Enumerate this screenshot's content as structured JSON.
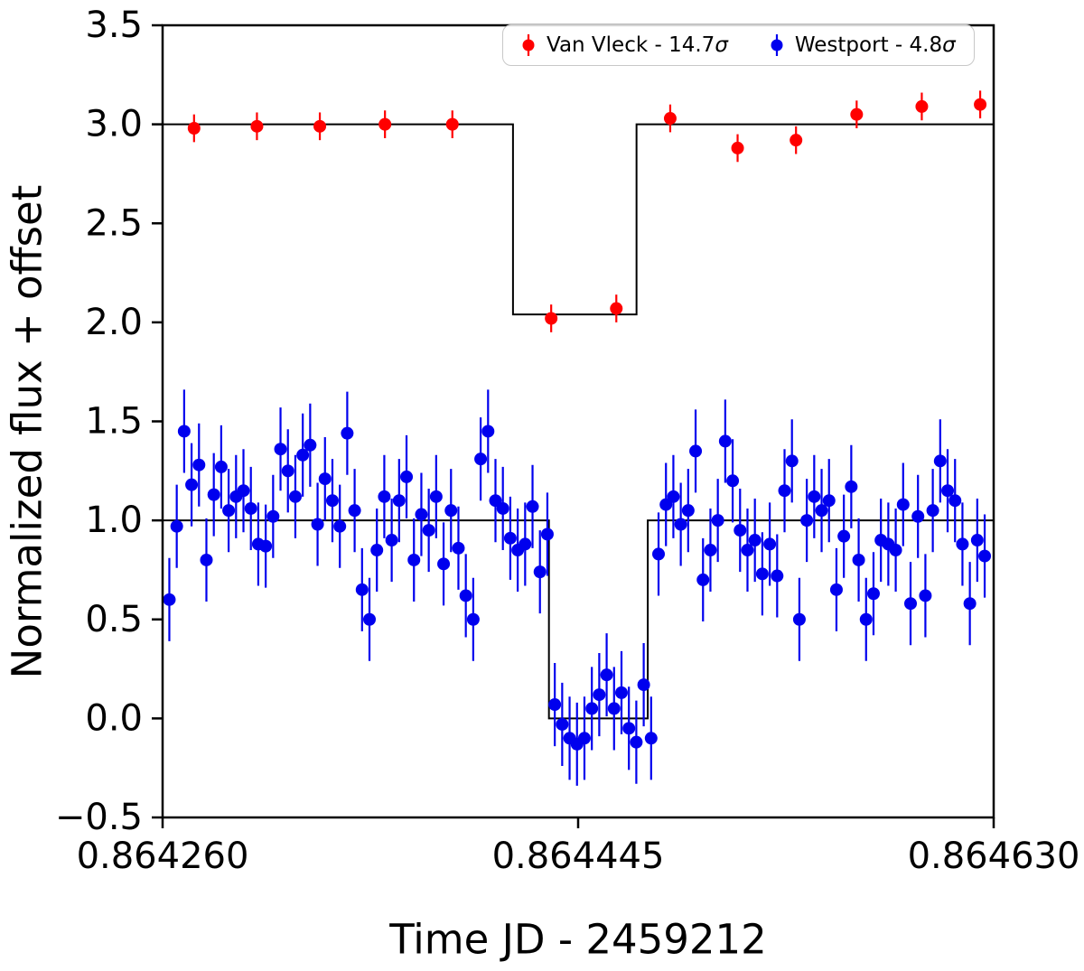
{
  "figure": {
    "background": "#ffffff"
  },
  "legend": {
    "items": [
      {
        "label": "Van Vleck - 14.7",
        "sigma": "σ",
        "color": "#ff0000"
      },
      {
        "label": "Westport - 4.8",
        "sigma": "σ",
        "color": "#0000ee"
      }
    ]
  },
  "chart_data": {
    "type": "scatter",
    "title": "",
    "xlabel": "Time JD - 2459212",
    "ylabel": "Normalized flux + offset",
    "xlim": [
      0.86426,
      0.86463
    ],
    "ylim": [
      -0.5,
      3.5
    ],
    "xticks": [
      0.86426,
      0.864445,
      0.86463
    ],
    "xtick_labels": [
      "0.864260",
      "0.864445",
      "0.864630"
    ],
    "yticks": [
      3.5,
      3.0,
      2.5,
      2.0,
      1.5,
      1.0,
      0.5,
      0.0,
      -0.5
    ],
    "ytick_labels": [
      "3.5",
      "3.0",
      "2.5",
      "2.0",
      "1.5",
      "1.0",
      "0.5",
      "0.0",
      "−0.5"
    ],
    "grid": false,
    "legend_position": "upper center-right",
    "series": [
      {
        "id": "van-vleck",
        "name": "Van Vleck - 14.7σ",
        "color": "#ff0000",
        "offset": 3.0,
        "marker": "circle",
        "marker_radius": 7,
        "yerr": 0.07,
        "x": [
          0.864274,
          0.864302,
          0.86433,
          0.864359,
          0.864389,
          0.864433,
          0.864462,
          0.864486,
          0.864516,
          0.864542,
          0.864569,
          0.864598,
          0.864624
        ],
        "y": [
          2.98,
          2.99,
          2.99,
          3.0,
          3.0,
          2.02,
          2.07,
          3.03,
          2.88,
          2.92,
          3.05,
          3.09,
          3.1
        ],
        "model": {
          "color": "#000000",
          "baseline": 3.0,
          "dip_level": 2.04,
          "ingress": 0.864416,
          "egress": 0.864471,
          "points": [
            [
              0.86426,
              3.0
            ],
            [
              0.864416,
              3.0
            ],
            [
              0.864416,
              2.04
            ],
            [
              0.864471,
              2.04
            ],
            [
              0.864471,
              3.0
            ],
            [
              0.86463,
              3.0
            ]
          ]
        }
      },
      {
        "id": "westport",
        "name": "Westport - 4.8σ",
        "color": "#0000ee",
        "offset": 1.0,
        "marker": "circle",
        "marker_radius": 7,
        "yerr": 0.21,
        "x": [
          0.864263,
          0.8642663,
          0.8642696,
          0.8642729,
          0.8642762,
          0.8642795,
          0.8642828,
          0.8642861,
          0.8642894,
          0.8642927,
          0.864296,
          0.8642993,
          0.8643026,
          0.8643059,
          0.8643092,
          0.8643125,
          0.8643158,
          0.8643191,
          0.8643224,
          0.8643257,
          0.864329,
          0.8643323,
          0.8643356,
          0.8643389,
          0.8643422,
          0.8643455,
          0.8643488,
          0.8643521,
          0.8643554,
          0.8643587,
          0.864362,
          0.8643653,
          0.8643686,
          0.8643719,
          0.8643752,
          0.8643785,
          0.8643818,
          0.8643851,
          0.8643884,
          0.8643917,
          0.864395,
          0.8643983,
          0.8644016,
          0.8644049,
          0.8644082,
          0.8644115,
          0.8644148,
          0.8644181,
          0.8644214,
          0.8644247,
          0.864428,
          0.8644313,
          0.8644346,
          0.8644379,
          0.8644412,
          0.8644445,
          0.8644478,
          0.8644511,
          0.8644544,
          0.8644577,
          0.864461,
          0.8644643,
          0.8644676,
          0.8644709,
          0.8644742,
          0.8644775,
          0.8644808,
          0.8644841,
          0.8644874,
          0.8644907,
          0.864494,
          0.8644973,
          0.8645006,
          0.8645039,
          0.8645072,
          0.8645105,
          0.8645138,
          0.8645171,
          0.8645204,
          0.8645237,
          0.864527,
          0.8645303,
          0.8645336,
          0.8645369,
          0.8645402,
          0.8645435,
          0.8645468,
          0.8645501,
          0.8645534,
          0.8645567,
          0.86456,
          0.8645633,
          0.8645666,
          0.8645699,
          0.8645732,
          0.8645765,
          0.8645798,
          0.8645831,
          0.8645864,
          0.8645897,
          0.864593,
          0.8645963,
          0.8645996,
          0.8646029,
          0.8646062,
          0.8646095,
          0.8646128,
          0.8646161,
          0.8646194,
          0.8646227,
          0.864626
        ],
        "y": [
          0.6,
          0.97,
          1.45,
          1.18,
          1.28,
          0.8,
          1.13,
          1.27,
          1.05,
          1.12,
          1.15,
          1.06,
          0.88,
          0.87,
          1.02,
          1.36,
          1.25,
          1.12,
          1.33,
          1.38,
          0.98,
          1.21,
          1.1,
          0.97,
          1.44,
          1.05,
          0.65,
          0.5,
          0.85,
          1.12,
          0.9,
          1.1,
          1.22,
          0.8,
          1.03,
          0.95,
          1.12,
          0.78,
          1.05,
          0.86,
          0.62,
          0.5,
          1.31,
          1.45,
          1.1,
          1.06,
          0.91,
          0.85,
          0.88,
          1.07,
          0.74,
          0.93,
          0.07,
          -0.03,
          -0.1,
          -0.13,
          -0.1,
          0.05,
          0.12,
          0.22,
          0.05,
          0.13,
          -0.05,
          -0.12,
          0.17,
          -0.1,
          0.83,
          1.08,
          1.12,
          0.98,
          1.05,
          1.35,
          0.7,
          0.85,
          1.0,
          1.4,
          1.2,
          0.95,
          0.85,
          0.9,
          0.73,
          0.88,
          0.72,
          1.15,
          1.3,
          0.5,
          1.0,
          1.12,
          1.05,
          1.1,
          0.65,
          0.92,
          1.17,
          0.8,
          0.5,
          0.63,
          0.9,
          0.88,
          0.85,
          1.08,
          0.58,
          1.02,
          0.62,
          1.05,
          1.3,
          1.15,
          1.1,
          0.88,
          0.58,
          0.9,
          0.82
        ],
        "model": {
          "color": "#000000",
          "baseline": 1.0,
          "dip_level": 0.0,
          "ingress": 0.864432,
          "egress": 0.864476,
          "points": [
            [
              0.86426,
              1.0
            ],
            [
              0.864432,
              1.0
            ],
            [
              0.864432,
              0.0
            ],
            [
              0.864476,
              0.0
            ],
            [
              0.864476,
              1.0
            ],
            [
              0.86463,
              1.0
            ]
          ]
        }
      }
    ]
  }
}
